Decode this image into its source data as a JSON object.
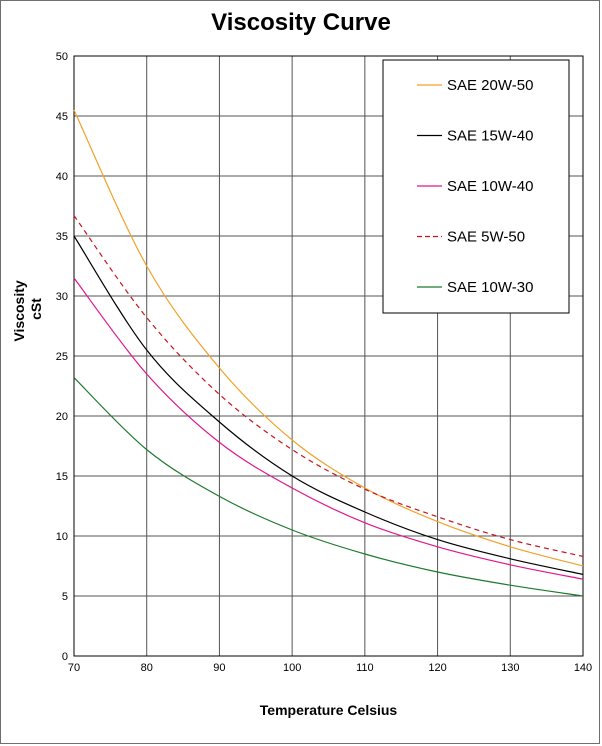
{
  "chart_data": {
    "type": "line",
    "title": "Viscosity Curve",
    "xlabel": "Temperature Celsius",
    "ylabel_lines": [
      "Viscosity",
      "cSt"
    ],
    "xlim": [
      70,
      140
    ],
    "ylim": [
      0,
      50
    ],
    "x_ticks": [
      70,
      80,
      90,
      100,
      110,
      120,
      130,
      140
    ],
    "y_ticks": [
      0,
      5,
      10,
      15,
      20,
      25,
      30,
      35,
      40,
      45,
      50
    ],
    "grid": true,
    "legend_position": "top-right",
    "x": [
      70,
      80,
      90,
      100,
      110,
      120,
      130,
      140
    ],
    "series": [
      {
        "name": "SAE 20W-50",
        "color": "#f2a12a",
        "dash": "solid",
        "values": [
          45.5,
          32.5,
          24.0,
          18.0,
          14.0,
          11.2,
          9.1,
          7.5
        ]
      },
      {
        "name": "SAE 15W-40",
        "color": "#000000",
        "dash": "solid",
        "values": [
          35.0,
          25.5,
          19.5,
          15.0,
          12.0,
          9.7,
          8.1,
          6.8
        ]
      },
      {
        "name": "SAE 10W-40",
        "color": "#e0188c",
        "dash": "solid",
        "values": [
          31.5,
          23.5,
          17.8,
          14.0,
          11.1,
          9.1,
          7.6,
          6.4
        ]
      },
      {
        "name": "SAE 5W-50",
        "color": "#c8141e",
        "dash": "dashed",
        "values": [
          36.7,
          28.2,
          21.8,
          17.2,
          13.9,
          11.6,
          9.7,
          8.3
        ]
      },
      {
        "name": "SAE 10W-30",
        "color": "#1e7a2e",
        "dash": "solid",
        "values": [
          23.2,
          17.2,
          13.3,
          10.5,
          8.5,
          7.0,
          5.9,
          5.0
        ]
      }
    ]
  }
}
